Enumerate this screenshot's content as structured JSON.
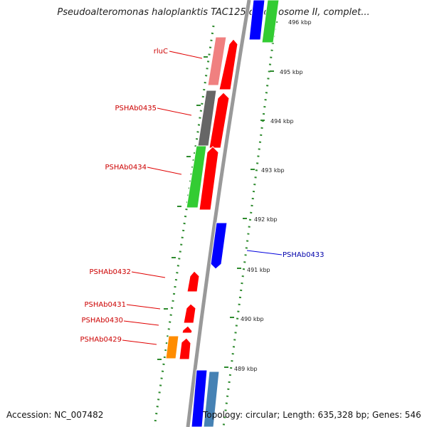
{
  "title": "Pseudoalteromonas haloplanktis TAC125 chromosome II, complet...",
  "accession": "Accession: NC_007482",
  "topology": "Topology: circular; Length: 635,328 bp; Genes: 546",
  "colors": {
    "backbone": "#999999",
    "tick": "#2e8b2e",
    "label_red": "#cc0000",
    "label_blue": "#0000aa",
    "leader_red": "#e00000",
    "leader_blue": "#0000dd",
    "red": "#ff0000",
    "pink": "#f08080",
    "gray": "#666666",
    "green": "#33cc33",
    "blue": "#0000ff",
    "steel": "#4682b4",
    "orange": "#ff8c00"
  },
  "kbp_labels": [
    "496 kbp",
    "495 kbp",
    "494 kbp",
    "493 kbp",
    "492 kbp",
    "491 kbp",
    "490 kbp",
    "489 kbp"
  ],
  "gene_labels": [
    "rluC",
    "PSHAb0435",
    "PSHAb0434",
    "PSHAb0433",
    "PSHAb0432",
    "PSHAb0431",
    "PSHAb0430",
    "PSHAb0429"
  ]
}
